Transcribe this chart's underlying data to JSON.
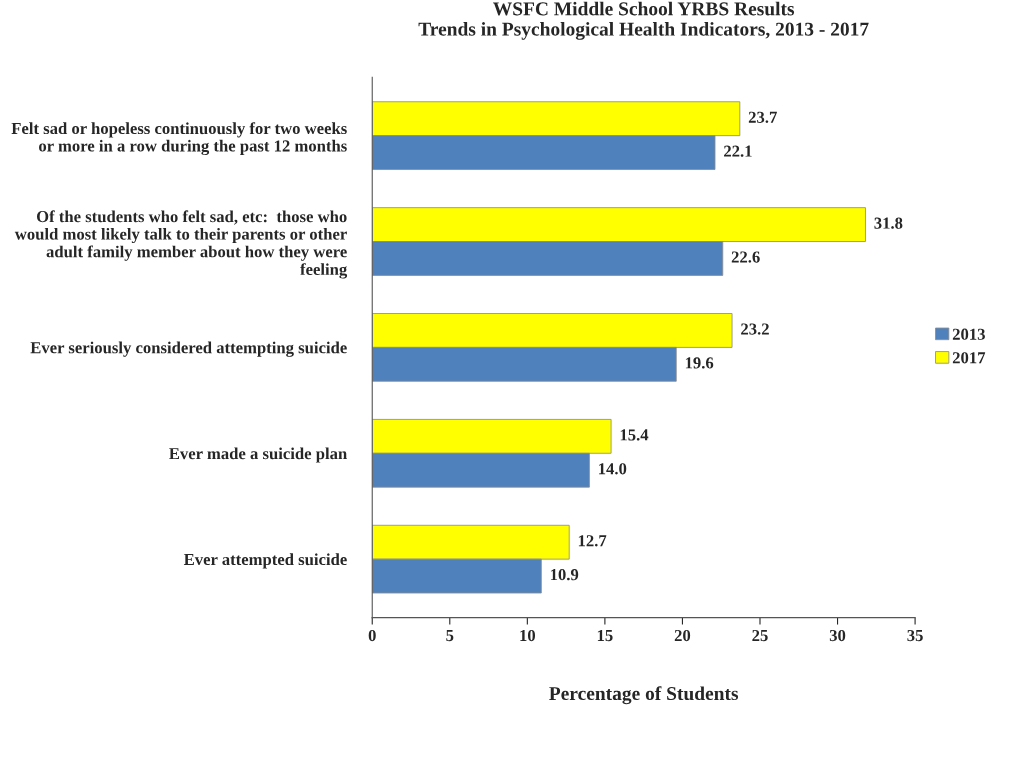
{
  "chart_data": {
    "type": "bar",
    "orientation": "horizontal",
    "title": "WSFC Middle School YRBS Results\nTrends in Psychological Health Indicators, 2013 - 2017",
    "xlabel": "Percentage of Students",
    "categories": [
      "Felt sad or hopeless continuously for two weeks or more in a row during the past 12 months",
      "Of the students who felt sad, etc:  those who would most likely talk to their parents or other adult family member about how they were feeling",
      "Ever seriously considered attempting suicide",
      "Ever made a suicide plan",
      "Ever attempted suicide"
    ],
    "series": [
      {
        "name": "2017",
        "color": "#ffff00",
        "values": [
          23.7,
          31.8,
          23.2,
          15.4,
          12.7
        ],
        "value_labels": [
          "23.7",
          "31.8",
          "23.2",
          "15.4",
          "12.7"
        ]
      },
      {
        "name": "2013",
        "color": "#4f81bd",
        "values": [
          22.1,
          22.6,
          19.6,
          14.0,
          10.9
        ],
        "value_labels": [
          "22.1",
          "22.6",
          "19.6",
          "14.0",
          "10.9"
        ]
      }
    ],
    "xlim": [
      0,
      35
    ],
    "xticks": [
      0,
      5,
      10,
      15,
      20,
      25,
      30,
      35
    ],
    "grid": false,
    "legend": "right"
  }
}
